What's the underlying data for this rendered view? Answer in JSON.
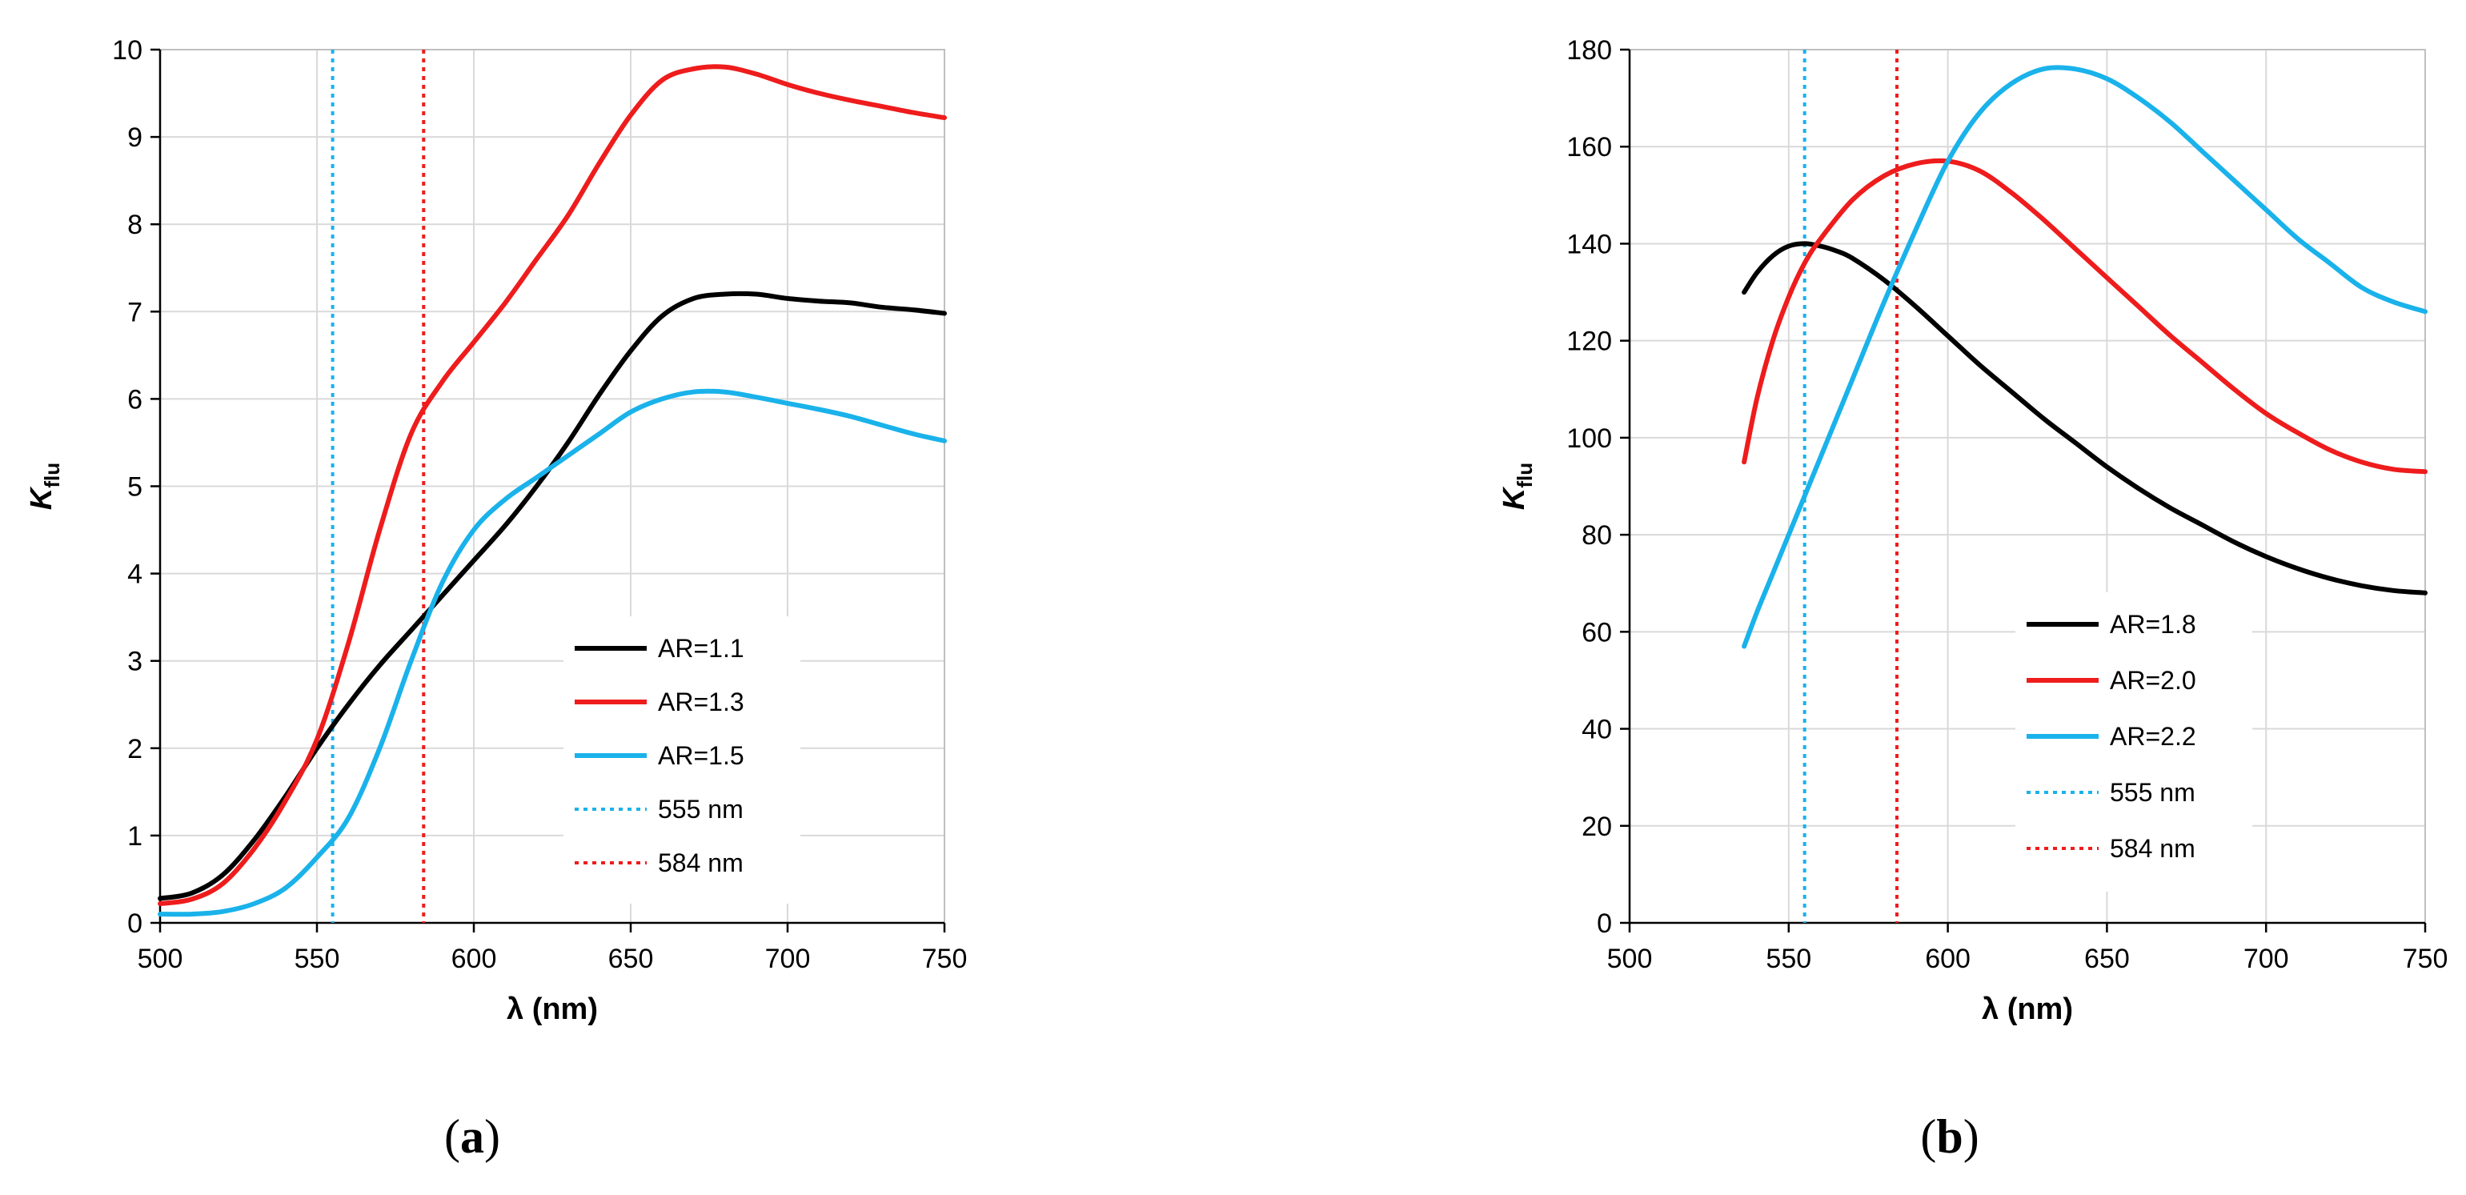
{
  "chart_data": [
    {
      "type": "line",
      "panel_label": "a",
      "xlabel": "λ (nm)",
      "ylabel_main": "K",
      "ylabel_sub": "flu",
      "xlim": [
        500,
        750
      ],
      "ylim": [
        0,
        10
      ],
      "x_ticks": [
        500,
        550,
        600,
        650,
        700,
        750
      ],
      "y_ticks": [
        0,
        1,
        2,
        3,
        4,
        5,
        6,
        7,
        8,
        9,
        10
      ],
      "grid": true,
      "legend_position": "lower-right",
      "series": [
        {
          "name": "AR=1.1",
          "color": "#000000",
          "x": [
            500,
            510,
            520,
            530,
            540,
            550,
            560,
            570,
            580,
            590,
            600,
            610,
            620,
            630,
            640,
            650,
            660,
            670,
            680,
            690,
            700,
            710,
            720,
            730,
            740,
            750
          ],
          "y": [
            0.28,
            0.34,
            0.55,
            0.95,
            1.45,
            2.0,
            2.5,
            2.95,
            3.35,
            3.75,
            4.15,
            4.55,
            5.0,
            5.5,
            6.05,
            6.55,
            6.95,
            7.15,
            7.2,
            7.2,
            7.15,
            7.12,
            7.1,
            7.05,
            7.02,
            6.98
          ]
        },
        {
          "name": "AR=1.3",
          "color": "#ee1c1c",
          "x": [
            500,
            510,
            520,
            530,
            540,
            550,
            560,
            570,
            580,
            590,
            600,
            610,
            620,
            630,
            640,
            650,
            660,
            670,
            680,
            690,
            700,
            710,
            720,
            730,
            740,
            750
          ],
          "y": [
            0.22,
            0.27,
            0.45,
            0.85,
            1.4,
            2.1,
            3.2,
            4.5,
            5.6,
            6.2,
            6.65,
            7.1,
            7.6,
            8.1,
            8.7,
            9.25,
            9.65,
            9.78,
            9.8,
            9.72,
            9.6,
            9.5,
            9.42,
            9.35,
            9.28,
            9.22
          ]
        },
        {
          "name": "AR=1.5",
          "color": "#1ab2ea",
          "x": [
            500,
            510,
            520,
            530,
            540,
            550,
            560,
            570,
            580,
            590,
            600,
            610,
            620,
            630,
            640,
            650,
            660,
            670,
            680,
            690,
            700,
            710,
            720,
            730,
            740,
            750
          ],
          "y": [
            0.1,
            0.1,
            0.13,
            0.22,
            0.4,
            0.75,
            1.2,
            2.0,
            3.0,
            3.9,
            4.5,
            4.85,
            5.1,
            5.35,
            5.6,
            5.85,
            6.0,
            6.08,
            6.08,
            6.02,
            5.95,
            5.88,
            5.8,
            5.7,
            5.6,
            5.52
          ]
        }
      ],
      "reference_lines": [
        {
          "name": "555 nm",
          "x": 555,
          "color": "#1ab2ea"
        },
        {
          "name": "584 nm",
          "x": 584,
          "color": "#ee1c1c"
        }
      ]
    },
    {
      "type": "line",
      "panel_label": "b",
      "xlabel": "λ (nm)",
      "ylabel_main": "K",
      "ylabel_sub": "flu",
      "xlim": [
        500,
        750
      ],
      "ylim": [
        0,
        180
      ],
      "x_ticks": [
        500,
        550,
        600,
        650,
        700,
        750
      ],
      "y_ticks": [
        0,
        20,
        40,
        60,
        80,
        100,
        120,
        140,
        160,
        180
      ],
      "grid": true,
      "legend_position": "lower-center",
      "series": [
        {
          "name": "AR=1.8",
          "color": "#000000",
          "x": [
            536,
            540,
            545,
            550,
            555,
            560,
            565,
            570,
            580,
            590,
            600,
            610,
            620,
            630,
            640,
            650,
            660,
            670,
            680,
            690,
            700,
            710,
            720,
            730,
            740,
            750
          ],
          "y": [
            130,
            134,
            137.5,
            139.5,
            140,
            139.5,
            138.5,
            137,
            132.5,
            127,
            121,
            115,
            109.5,
            104,
            99,
            94,
            89.5,
            85.5,
            82,
            78.5,
            75.5,
            73,
            71,
            69.5,
            68.5,
            68
          ]
        },
        {
          "name": "AR=2.0",
          "color": "#ee1c1c",
          "x": [
            536,
            540,
            545,
            550,
            555,
            560,
            570,
            580,
            590,
            600,
            610,
            620,
            630,
            640,
            650,
            660,
            670,
            680,
            690,
            700,
            710,
            720,
            730,
            740,
            750
          ],
          "y": [
            95,
            108,
            120,
            129,
            136,
            141,
            149,
            154,
            156.5,
            157,
            155,
            150.5,
            145,
            139,
            133,
            127,
            121,
            115.5,
            110,
            105,
            101,
            97.5,
            95,
            93.5,
            93
          ]
        },
        {
          "name": "AR=2.2",
          "color": "#1ab2ea",
          "x": [
            536,
            540,
            545,
            550,
            555,
            560,
            570,
            580,
            590,
            600,
            610,
            620,
            630,
            640,
            650,
            660,
            670,
            680,
            690,
            700,
            710,
            720,
            730,
            740,
            750
          ],
          "y": [
            57,
            64,
            72,
            80,
            88,
            96,
            112,
            128,
            143,
            157,
            167,
            173,
            176,
            176,
            174,
            170,
            165,
            159,
            153,
            147,
            141,
            136,
            131,
            128,
            126
          ]
        }
      ],
      "reference_lines": [
        {
          "name": "555 nm",
          "x": 555,
          "color": "#1ab2ea"
        },
        {
          "name": "584 nm",
          "x": 584,
          "color": "#ee1c1c"
        }
      ]
    }
  ]
}
